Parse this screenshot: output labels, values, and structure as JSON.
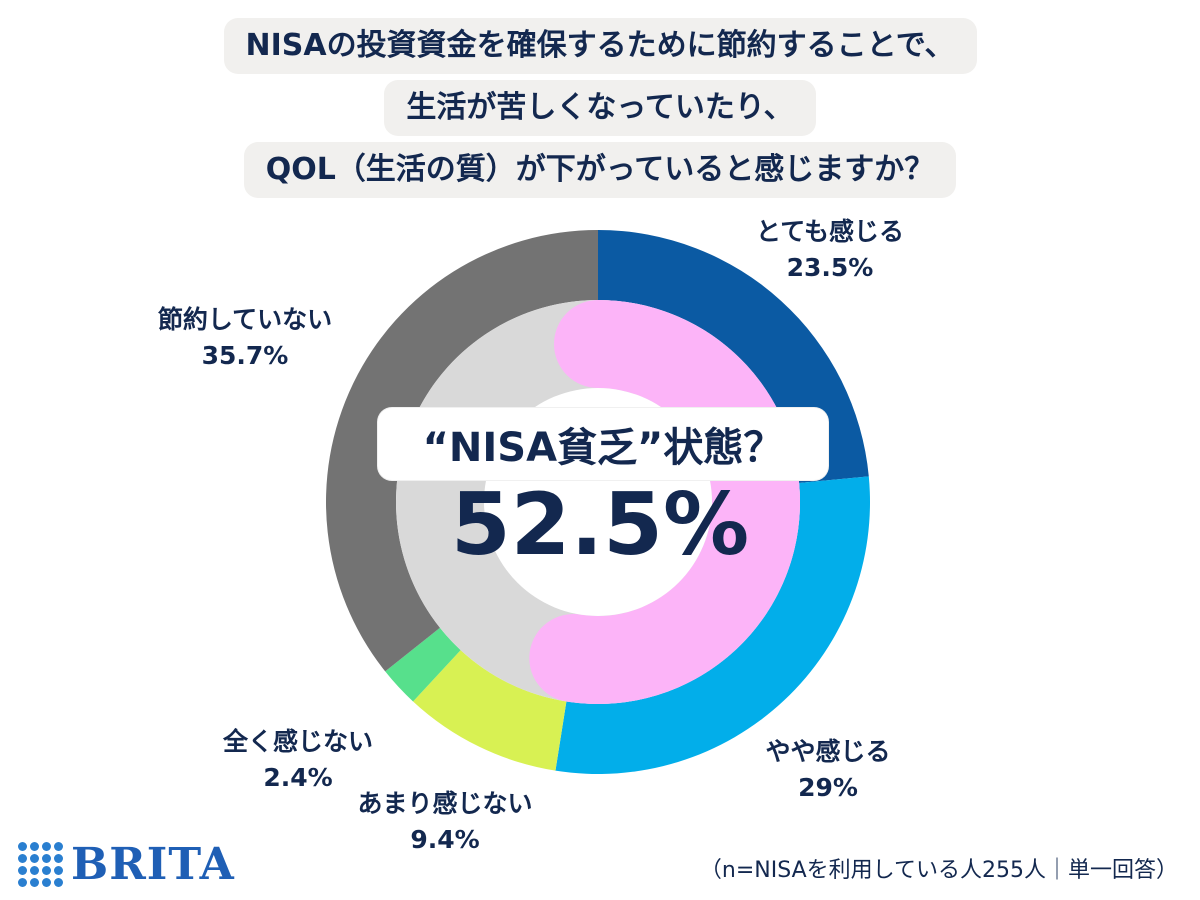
{
  "title": {
    "lines": [
      "NISAの投資資金を確保するために節約することで、",
      "生活が苦しくなっていたり、",
      "QOL（生活の質）が下がっていると感じますか？"
    ]
  },
  "chart_data": {
    "type": "pie",
    "subtype": "donut",
    "title": "NISAの投資資金を確保するために節約することで、生活が苦しくなっていたり、QOL（生活の質）が下がっていると感じますか？",
    "slices": [
      {
        "label": "とても感じる",
        "value": 23.5,
        "value_label": "23.5%",
        "color": "#0b5aa3"
      },
      {
        "label": "やや感じる",
        "value": 29.0,
        "value_label": "29%",
        "color": "#02aeea"
      },
      {
        "label": "あまり感じない",
        "value": 9.4,
        "value_label": "9.4%",
        "color": "#d8f153"
      },
      {
        "label": "全く感じない",
        "value": 2.4,
        "value_label": "2.4%",
        "color": "#57e08c"
      },
      {
        "label": "節約していない",
        "value": 35.7,
        "value_label": "35.7%",
        "color": "#737373"
      }
    ],
    "highlight": {
      "label": "“NISA貧乏”状態？",
      "value": 52.5,
      "value_label": "52.5%",
      "color": "#fcb4f8",
      "rest_color": "#d9d9d9"
    }
  },
  "footer": {
    "brand": "BRITA",
    "note": "（n=NISAを利用している人255人｜単一回答）"
  }
}
